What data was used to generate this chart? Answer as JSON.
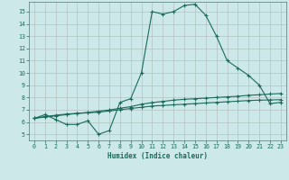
{
  "xlabel": "Humidex (Indice chaleur)",
  "bg_color": "#cce8e8",
  "grid_color": "#b0b8b8",
  "line_color": "#1a6b5a",
  "xlim": [
    -0.5,
    23.5
  ],
  "ylim": [
    4.5,
    15.8
  ],
  "xticks": [
    0,
    1,
    2,
    3,
    4,
    5,
    6,
    7,
    8,
    9,
    10,
    11,
    12,
    13,
    14,
    15,
    16,
    17,
    18,
    19,
    20,
    21,
    22,
    23
  ],
  "yticks": [
    5,
    6,
    7,
    8,
    9,
    10,
    11,
    12,
    13,
    14,
    15
  ],
  "line1_x": [
    0,
    1,
    2,
    3,
    4,
    5,
    6,
    7,
    8,
    9,
    10,
    11,
    12,
    13,
    14,
    15,
    16,
    17,
    18,
    19,
    20,
    21,
    22,
    23
  ],
  "line1_y": [
    6.3,
    6.6,
    6.2,
    5.8,
    5.8,
    6.1,
    5.0,
    5.3,
    7.6,
    7.9,
    10.0,
    15.0,
    14.8,
    15.0,
    15.5,
    15.6,
    14.7,
    13.0,
    11.0,
    10.4,
    9.8,
    9.0,
    7.5,
    7.6
  ],
  "line2_x": [
    0,
    1,
    2,
    3,
    4,
    5,
    6,
    7,
    8,
    9,
    10,
    11,
    12,
    13,
    14,
    15,
    16,
    17,
    18,
    19,
    20,
    21,
    22,
    23
  ],
  "line2_y": [
    6.3,
    6.4,
    6.5,
    6.6,
    6.7,
    6.75,
    6.8,
    6.9,
    7.0,
    7.1,
    7.2,
    7.3,
    7.35,
    7.4,
    7.45,
    7.5,
    7.55,
    7.6,
    7.65,
    7.7,
    7.75,
    7.78,
    7.8,
    7.82
  ],
  "line3_x": [
    0,
    1,
    2,
    3,
    4,
    5,
    6,
    7,
    8,
    9,
    10,
    11,
    12,
    13,
    14,
    15,
    16,
    17,
    18,
    19,
    20,
    21,
    22,
    23
  ],
  "line3_y": [
    6.3,
    6.45,
    6.55,
    6.65,
    6.7,
    6.78,
    6.88,
    6.98,
    7.12,
    7.25,
    7.45,
    7.58,
    7.68,
    7.78,
    7.85,
    7.9,
    7.95,
    8.0,
    8.05,
    8.1,
    8.18,
    8.22,
    8.28,
    8.32
  ],
  "xlabel_fontsize": 5.5,
  "tick_fontsize": 4.8
}
